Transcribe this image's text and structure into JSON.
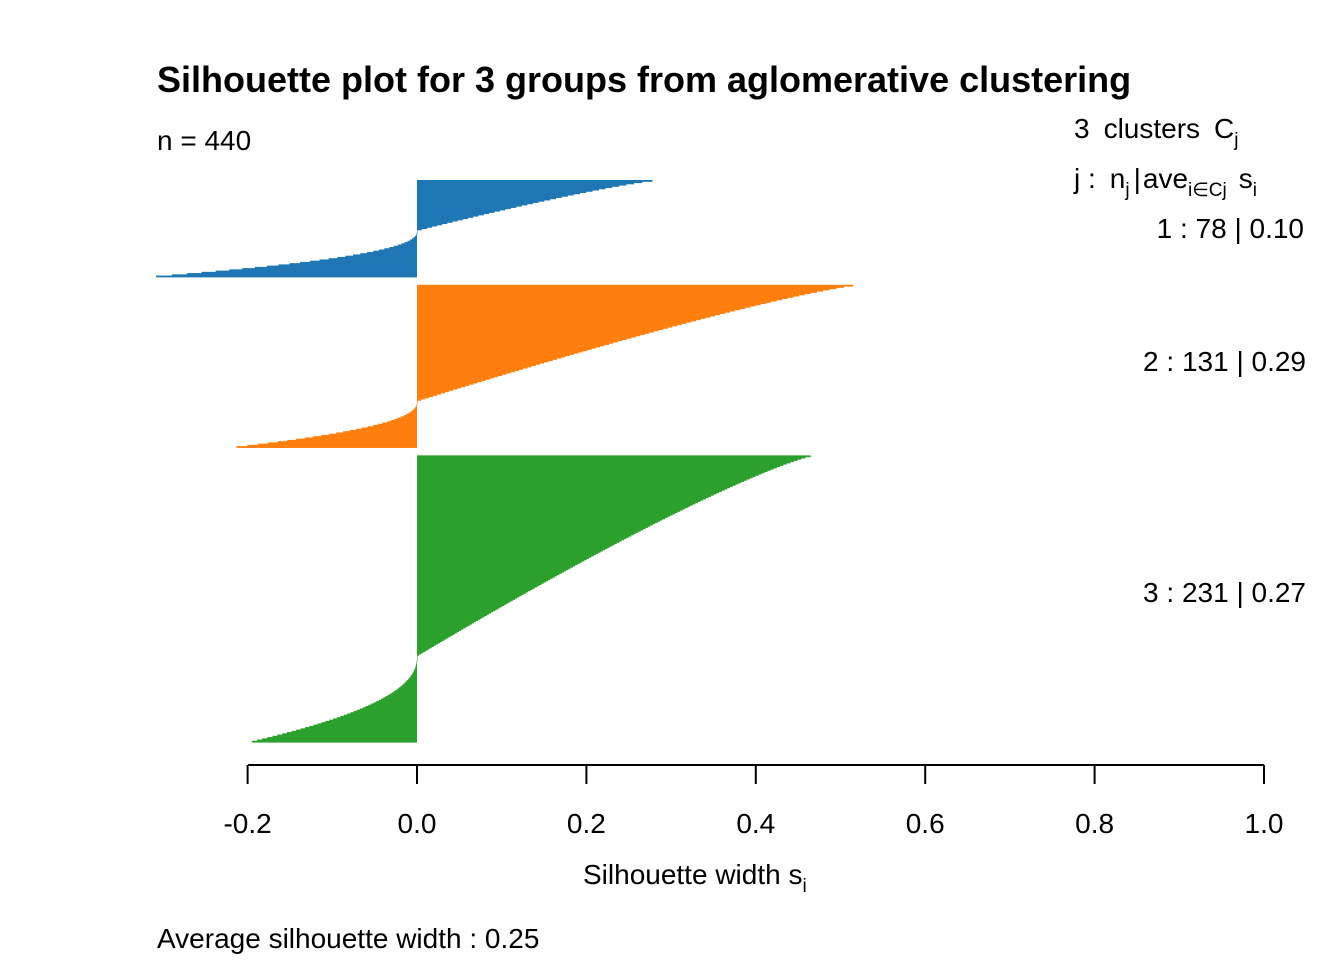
{
  "chart_data": {
    "type": "bar",
    "orientation": "horizontal",
    "title": "Silhouette plot for 3 groups from aglomerative clustering",
    "n_label": "n = 440",
    "xlabel": "Silhouette width",
    "xlabel_sub": "i",
    "xlabel_var": "s",
    "xlim": [
      -0.2,
      1.0
    ],
    "ticks": [
      "-0.2",
      "0.0",
      "0.2",
      "0.4",
      "0.6",
      "0.8",
      "1.0"
    ],
    "tick_values": [
      -0.2,
      0.0,
      0.2,
      0.4,
      0.6,
      0.8,
      1.0
    ],
    "footer": "Average silhouette width :  0.25",
    "legend": {
      "header_count": "3",
      "header_word": "clusters",
      "header_C": "C",
      "header_j": "j",
      "row_j": "j :",
      "row_n": "n",
      "row_sub_j": "j",
      "row_bar": "|",
      "row_ave": "ave",
      "row_ave_sub": "i∈Cj",
      "row_s": "s",
      "row_s_sub": "i"
    },
    "clusters": [
      {
        "j": "1",
        "size": 78,
        "avg": "0.10",
        "label": "1 :   78  |  0.10",
        "color": "#1f77b4",
        "max": 0.278,
        "pos_count": 41,
        "min": -0.308
      },
      {
        "j": "2",
        "size": 131,
        "avg": "0.29",
        "label": "2 :   131  |  0.29",
        "color": "#ff7f0e",
        "max": 0.515,
        "pos_count": 94,
        "min": -0.213
      },
      {
        "j": "3",
        "size": 231,
        "avg": "0.27",
        "label": "3 :   231  |  0.27",
        "color": "#2ca02c",
        "max": 0.465,
        "pos_count": 162,
        "min": -0.195
      }
    ]
  }
}
